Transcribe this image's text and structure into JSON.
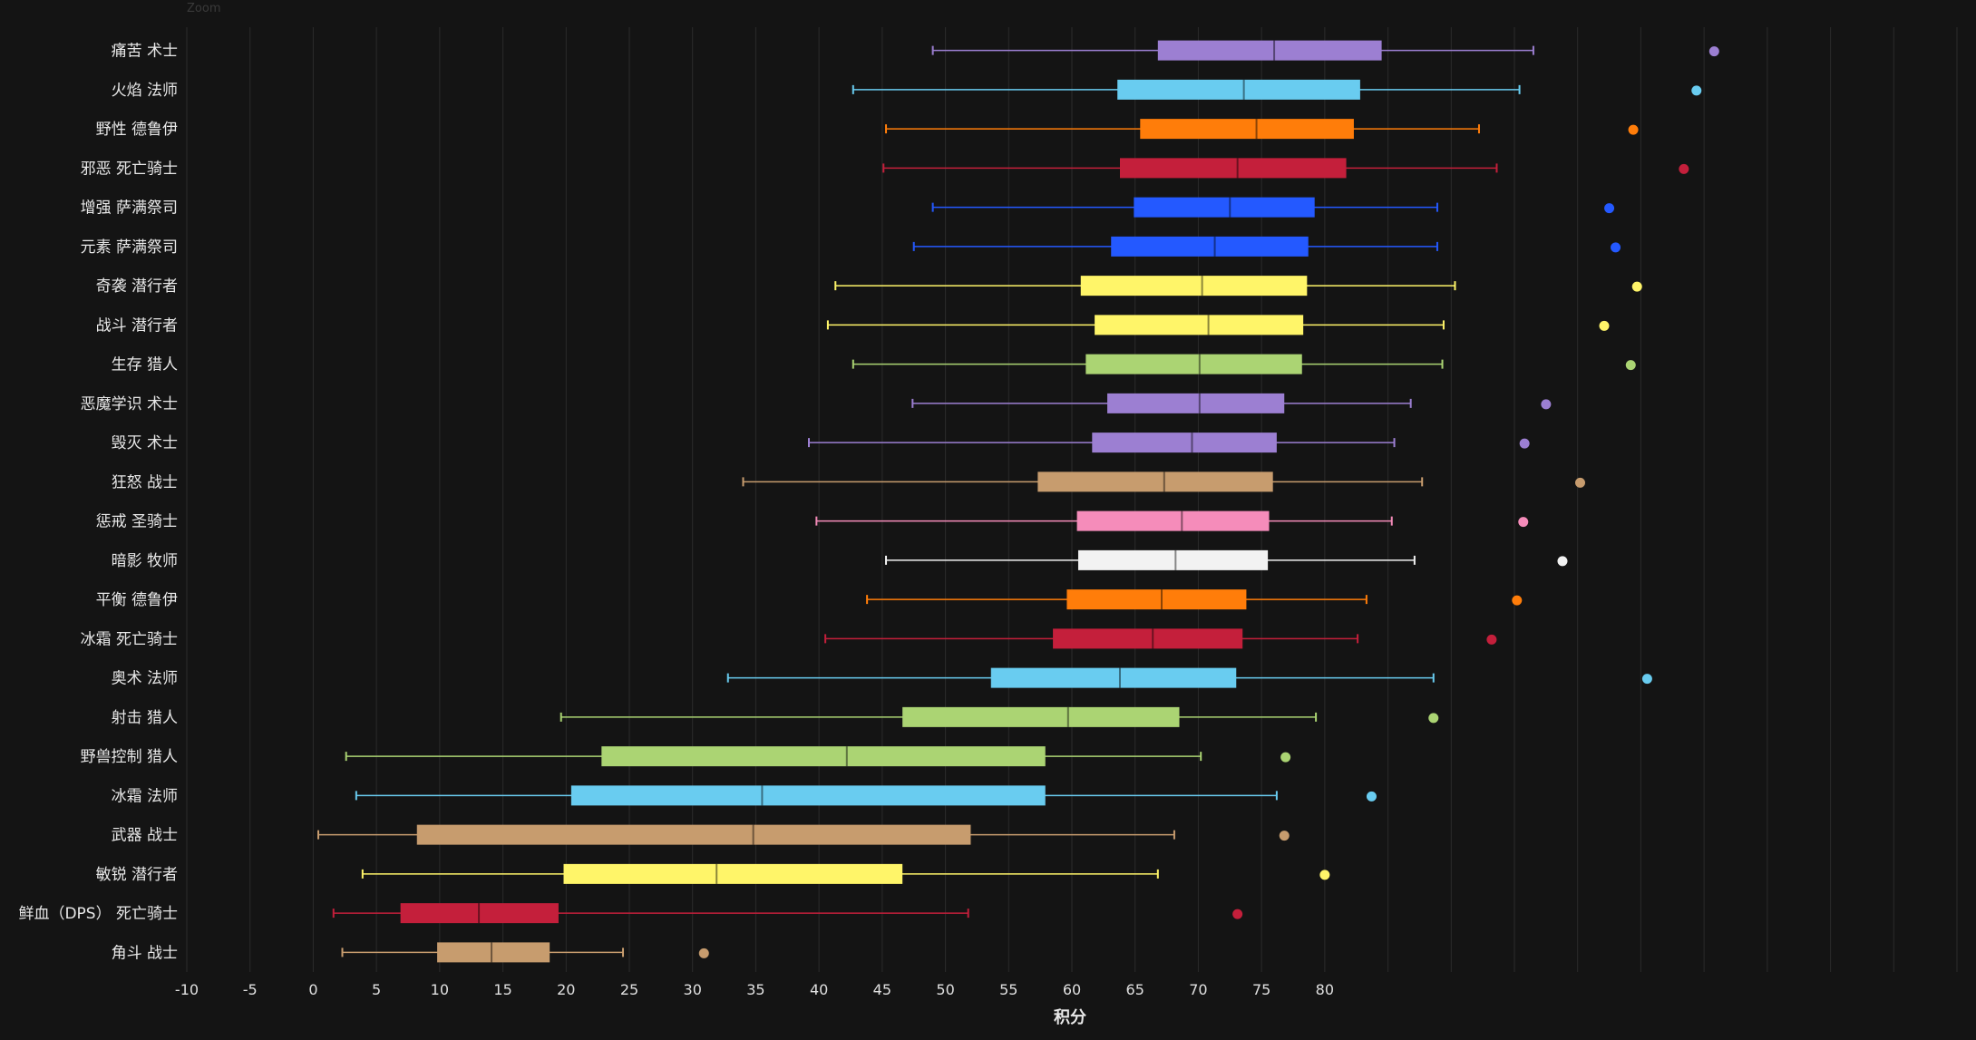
{
  "corner_label": "Zoom",
  "chart_data": {
    "type": "boxplot",
    "orientation": "horizontal",
    "xlabel": "积分",
    "ylabel": "",
    "xlim": [
      -10,
      130
    ],
    "xticks": [
      -10,
      -5,
      0,
      5,
      10,
      15,
      20,
      25,
      30,
      35,
      40,
      45,
      50,
      55,
      60,
      65,
      70,
      75,
      80
    ],
    "grid": true,
    "series": [
      {
        "name": "痛苦 术士",
        "color": "#9c7fd2",
        "min": 49.0,
        "q1": 66.8,
        "median": 76.0,
        "q3": 84.5,
        "max": 96.5,
        "outliers": [
          110.8
        ]
      },
      {
        "name": "火焰 法师",
        "color": "#69ccf0",
        "min": 42.7,
        "q1": 63.6,
        "median": 73.6,
        "q3": 82.8,
        "max": 95.4,
        "outliers": [
          109.4
        ]
      },
      {
        "name": "野性 德鲁伊",
        "color": "#ff7d0a",
        "min": 45.3,
        "q1": 65.4,
        "median": 74.6,
        "q3": 82.3,
        "max": 92.2,
        "outliers": [
          104.4
        ]
      },
      {
        "name": "邪恶 死亡骑士",
        "color": "#c41f3b",
        "min": 45.1,
        "q1": 63.8,
        "median": 73.1,
        "q3": 81.7,
        "max": 93.6,
        "outliers": [
          108.4
        ]
      },
      {
        "name": "增强 萨满祭司",
        "color": "#2459ff",
        "min": 49.0,
        "q1": 64.9,
        "median": 72.5,
        "q3": 79.2,
        "max": 88.9,
        "outliers": [
          102.5
        ]
      },
      {
        "name": "元素 萨满祭司",
        "color": "#2459ff",
        "min": 47.5,
        "q1": 63.1,
        "median": 71.3,
        "q3": 78.7,
        "max": 88.9,
        "outliers": [
          103.0
        ]
      },
      {
        "name": "奇袭 潜行者",
        "color": "#fff569",
        "min": 41.3,
        "q1": 60.7,
        "median": 70.3,
        "q3": 78.6,
        "max": 90.3,
        "outliers": [
          104.7
        ]
      },
      {
        "name": "战斗 潜行者",
        "color": "#fff569",
        "min": 40.7,
        "q1": 61.8,
        "median": 70.8,
        "q3": 78.3,
        "max": 89.4,
        "outliers": [
          102.1
        ]
      },
      {
        "name": "生存 猎人",
        "color": "#abd473",
        "min": 42.7,
        "q1": 61.1,
        "median": 70.1,
        "q3": 78.2,
        "max": 89.3,
        "outliers": [
          104.2
        ]
      },
      {
        "name": "恶魔学识 术士",
        "color": "#9c7fd2",
        "min": 47.4,
        "q1": 62.8,
        "median": 70.1,
        "q3": 76.8,
        "max": 86.8,
        "outliers": [
          97.5
        ]
      },
      {
        "name": "毁灭 术士",
        "color": "#9c7fd2",
        "min": 39.2,
        "q1": 61.6,
        "median": 69.5,
        "q3": 76.2,
        "max": 85.5,
        "outliers": [
          95.8
        ]
      },
      {
        "name": "狂怒 战士",
        "color": "#c79c6e",
        "min": 34.0,
        "q1": 57.3,
        "median": 67.3,
        "q3": 75.9,
        "max": 87.7,
        "outliers": [
          100.2
        ]
      },
      {
        "name": "惩戒 圣骑士",
        "color": "#f58cba",
        "min": 39.8,
        "q1": 60.4,
        "median": 68.7,
        "q3": 75.6,
        "max": 85.3,
        "outliers": [
          95.7
        ]
      },
      {
        "name": "暗影 牧师",
        "color": "#f2f2f2",
        "min": 45.3,
        "q1": 60.5,
        "median": 68.2,
        "q3": 75.5,
        "max": 87.1,
        "outliers": [
          98.8
        ]
      },
      {
        "name": "平衡 德鲁伊",
        "color": "#ff7d0a",
        "min": 43.8,
        "q1": 59.6,
        "median": 67.1,
        "q3": 73.8,
        "max": 83.3,
        "outliers": [
          95.2
        ]
      },
      {
        "name": "冰霜 死亡骑士",
        "color": "#c41f3b",
        "min": 40.5,
        "q1": 58.5,
        "median": 66.4,
        "q3": 73.5,
        "max": 82.6,
        "outliers": [
          93.2
        ]
      },
      {
        "name": "奥术 法师",
        "color": "#69ccf0",
        "min": 32.8,
        "q1": 53.6,
        "median": 63.8,
        "q3": 73.0,
        "max": 88.6,
        "outliers": [
          105.5
        ]
      },
      {
        "name": "射击 猎人",
        "color": "#abd473",
        "min": 19.6,
        "q1": 46.6,
        "median": 59.7,
        "q3": 68.5,
        "max": 79.3,
        "outliers": [
          88.6
        ]
      },
      {
        "name": "野兽控制 猎人",
        "color": "#abd473",
        "min": 2.6,
        "q1": 22.8,
        "median": 42.2,
        "q3": 57.9,
        "max": 70.2,
        "outliers": [
          76.9
        ]
      },
      {
        "name": "冰霜 法师",
        "color": "#69ccf0",
        "min": 3.4,
        "q1": 20.4,
        "median": 35.5,
        "q3": 57.9,
        "max": 76.2,
        "outliers": [
          83.7
        ]
      },
      {
        "name": "武器 战士",
        "color": "#c79c6e",
        "min": 0.4,
        "q1": 8.2,
        "median": 34.8,
        "q3": 52.0,
        "max": 68.1,
        "outliers": [
          76.8
        ]
      },
      {
        "name": "敏锐 潜行者",
        "color": "#fff569",
        "min": 3.9,
        "q1": 19.8,
        "median": 31.9,
        "q3": 46.6,
        "max": 66.8,
        "outliers": [
          80.0
        ]
      },
      {
        "name": "鲜血（DPS） 死亡骑士",
        "color": "#c41f3b",
        "min": 1.6,
        "q1": 6.9,
        "median": 13.1,
        "q3": 19.4,
        "max": 51.8,
        "outliers": [
          73.1
        ]
      },
      {
        "name": "角斗 战士",
        "color": "#c79c6e",
        "min": 2.3,
        "q1": 9.8,
        "median": 14.1,
        "q3": 18.7,
        "max": 24.5,
        "outliers": [
          30.9
        ]
      }
    ]
  }
}
